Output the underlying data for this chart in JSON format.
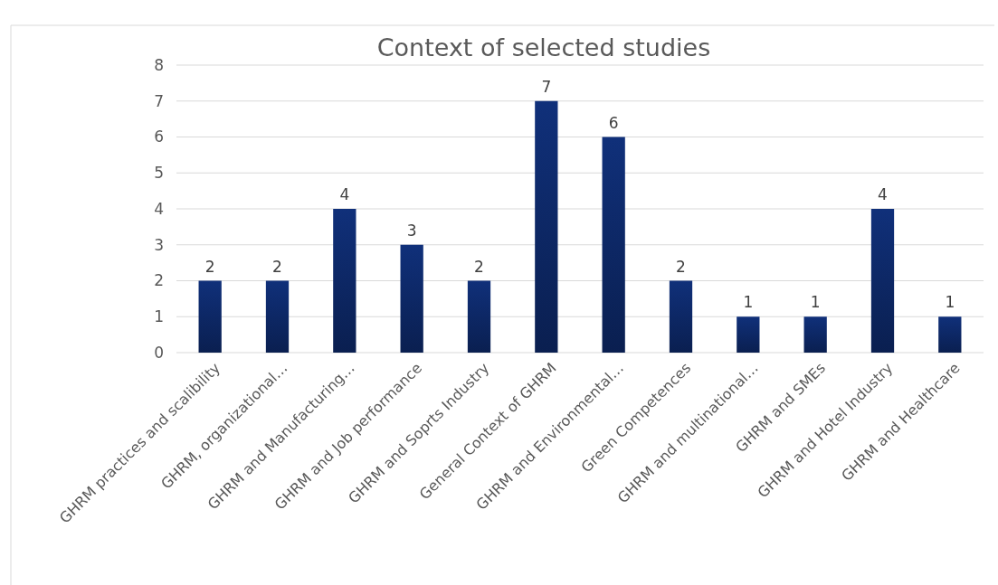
{
  "chart_data": {
    "type": "bar",
    "title": "Context of selected studies",
    "categories": [
      "GHRM practices and scalibility",
      "GHRM, organizational…",
      "GHRM and Manufacturing…",
      "GHRM and Job performance",
      "GHRM and Soprts Industry",
      "General Context of GHRM",
      "GHRM and Environmental…",
      "Green Competences",
      "GHRM and multinational…",
      "GHRM and SMEs",
      "GHRM and Hotel Industry",
      "GHRM and Healthcare"
    ],
    "values": [
      2,
      2,
      4,
      3,
      2,
      7,
      6,
      2,
      1,
      1,
      4,
      1
    ],
    "color": "#10307a",
    "ylim": [
      0,
      8
    ],
    "yticks": [
      0,
      1,
      2,
      3,
      4,
      5,
      6,
      7,
      8
    ],
    "grid": "y",
    "data_labels": true
  }
}
